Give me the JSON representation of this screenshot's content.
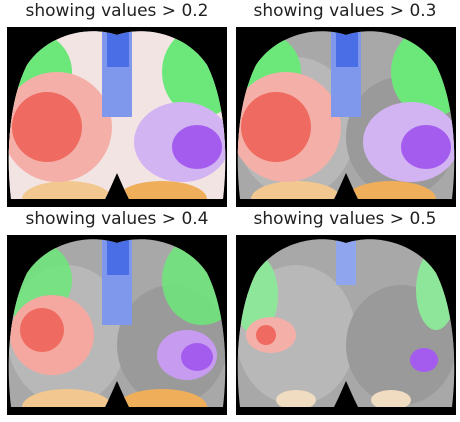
{
  "panels": [
    {
      "title": "showing values > 0.2"
    },
    {
      "title": "showing values > 0.3"
    },
    {
      "title": "showing values > 0.4"
    },
    {
      "title": "showing values > 0.5"
    }
  ]
}
